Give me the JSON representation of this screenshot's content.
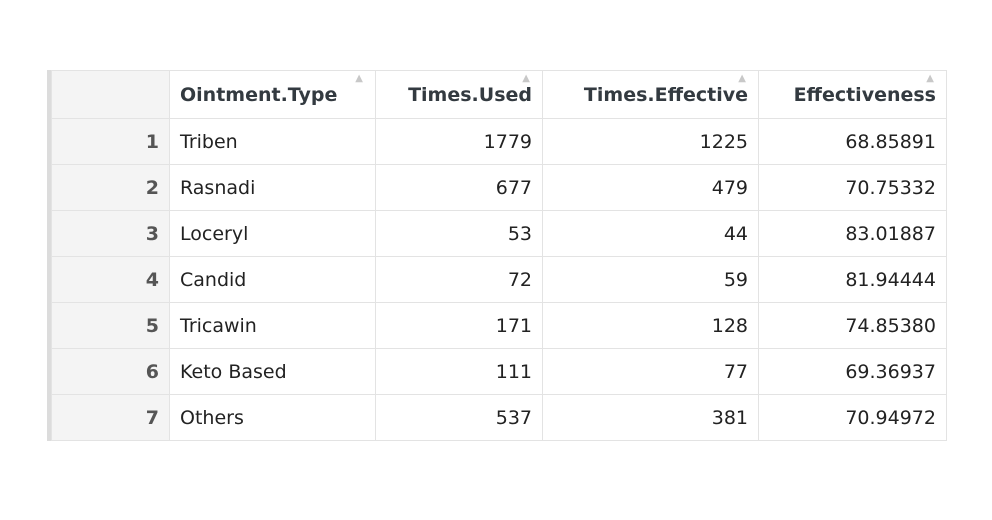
{
  "table": {
    "columns": [
      {
        "key": "Ointment.Type",
        "label": "Ointment.Type",
        "align": "left"
      },
      {
        "key": "Times.Used",
        "label": "Times.Used",
        "align": "right"
      },
      {
        "key": "Times.Effective",
        "label": "Times.Effective",
        "align": "right"
      },
      {
        "key": "Effectiveness",
        "label": "Effectiveness",
        "align": "right"
      }
    ],
    "rows": [
      {
        "index": "1",
        "cells": [
          "Triben",
          "1779",
          "1225",
          "68.85891"
        ]
      },
      {
        "index": "2",
        "cells": [
          "Rasnadi",
          "677",
          "479",
          "70.75332"
        ]
      },
      {
        "index": "3",
        "cells": [
          "Loceryl",
          "53",
          "44",
          "83.01887"
        ]
      },
      {
        "index": "4",
        "cells": [
          "Candid",
          "72",
          "59",
          "81.94444"
        ]
      },
      {
        "index": "5",
        "cells": [
          "Tricawin",
          "171",
          "128",
          "74.85380"
        ]
      },
      {
        "index": "6",
        "cells": [
          "Keto Based",
          "111",
          "77",
          "69.36937"
        ]
      },
      {
        "index": "7",
        "cells": [
          "Others",
          "537",
          "381",
          "70.94972"
        ]
      }
    ],
    "sort_icon": "sort-caret-icon"
  }
}
